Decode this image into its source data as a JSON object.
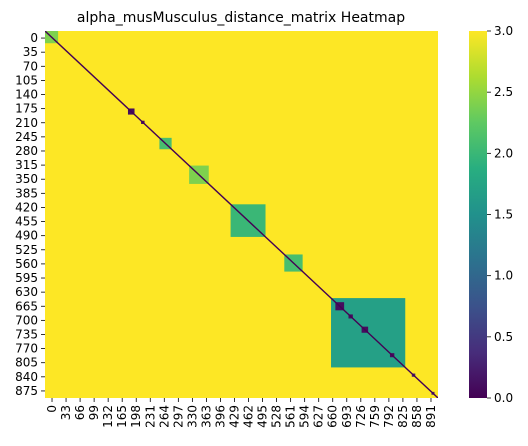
{
  "chart_data": {
    "type": "heatmap",
    "title": "alpha_musMusculus_distance_matrix Heatmap",
    "xlabel": "",
    "ylabel": "",
    "matrix_size": 900,
    "x_tick_labels": [
      "0",
      "33",
      "66",
      "99",
      "132",
      "165",
      "198",
      "231",
      "264",
      "297",
      "330",
      "363",
      "396",
      "429",
      "462",
      "495",
      "528",
      "561",
      "594",
      "627",
      "660",
      "693",
      "726",
      "759",
      "792",
      "825",
      "858",
      "891"
    ],
    "y_tick_labels": [
      "0",
      "35",
      "70",
      "105",
      "140",
      "175",
      "210",
      "245",
      "280",
      "315",
      "350",
      "385",
      "420",
      "455",
      "490",
      "525",
      "560",
      "595",
      "630",
      "665",
      "700",
      "735",
      "770",
      "805",
      "840",
      "875"
    ],
    "colorbar": {
      "colormap": "viridis",
      "vmin": 0.0,
      "vmax": 3.0,
      "tick_labels": [
        "0.0",
        "0.5",
        "1.0",
        "1.5",
        "2.0",
        "2.5",
        "3.0"
      ]
    },
    "background_value": 3.0,
    "diagonal_value": 0.0,
    "blocks": [
      {
        "start": 0,
        "end": 30,
        "value": 2.4
      },
      {
        "start": 190,
        "end": 205,
        "value": 0.1
      },
      {
        "start": 220,
        "end": 228,
        "value": 0.1
      },
      {
        "start": 262,
        "end": 290,
        "value": 2.1
      },
      {
        "start": 330,
        "end": 375,
        "value": 2.4
      },
      {
        "start": 425,
        "end": 505,
        "value": 2.0
      },
      {
        "start": 548,
        "end": 590,
        "value": 2.1
      },
      {
        "start": 655,
        "end": 825,
        "value": 1.7
      },
      {
        "start": 665,
        "end": 685,
        "value": 0.1
      },
      {
        "start": 695,
        "end": 705,
        "value": 0.1
      },
      {
        "start": 725,
        "end": 740,
        "value": 0.1
      },
      {
        "start": 790,
        "end": 800,
        "value": 0.1
      },
      {
        "start": 840,
        "end": 848,
        "value": 0.3
      },
      {
        "start": 885,
        "end": 892,
        "value": 0.3
      }
    ],
    "grid": false,
    "legend_placement": "right"
  }
}
